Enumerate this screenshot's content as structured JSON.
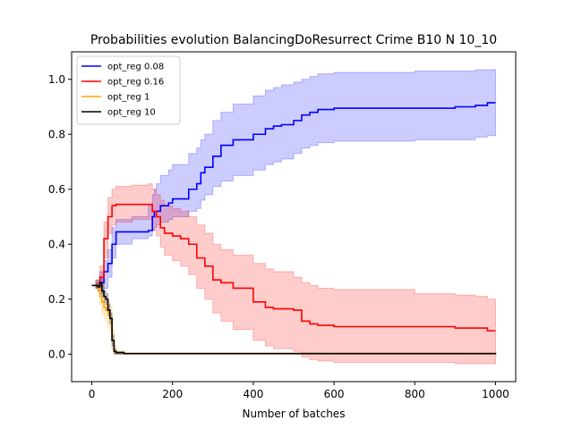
{
  "chart_data": {
    "type": "line",
    "title": "Probabilities evolution BalancingDoResurrect Crime B10 N 10_10",
    "xlabel": "Number of batches",
    "ylabel": "",
    "xlim": [
      -50,
      1050
    ],
    "ylim": [
      -0.1,
      1.1
    ],
    "xticks": [
      0,
      200,
      400,
      600,
      800,
      1000
    ],
    "yticks": [
      0.0,
      0.2,
      0.4,
      0.6,
      0.8,
      1.0
    ],
    "xtick_labels": [
      "0",
      "200",
      "400",
      "600",
      "800",
      "1000"
    ],
    "ytick_labels": [
      "0.0",
      "0.2",
      "0.4",
      "0.6",
      "0.8",
      "1.0"
    ],
    "grid": false,
    "legend_position": "top-left",
    "series": [
      {
        "name": "opt_reg 0.08",
        "color": "#0000ff",
        "band_color": "#0000ff",
        "x": [
          0,
          10,
          20,
          30,
          40,
          50,
          60,
          100,
          140,
          150,
          155,
          160,
          170,
          190,
          200,
          240,
          260,
          270,
          280,
          300,
          320,
          350,
          400,
          430,
          450,
          470,
          500,
          520,
          540,
          560,
          600,
          800,
          900,
          950,
          980,
          1000
        ],
        "values": [
          0.25,
          0.25,
          0.26,
          0.3,
          0.33,
          0.4,
          0.445,
          0.445,
          0.45,
          0.5,
          0.52,
          0.52,
          0.54,
          0.55,
          0.565,
          0.6,
          0.62,
          0.66,
          0.68,
          0.72,
          0.76,
          0.78,
          0.8,
          0.82,
          0.83,
          0.835,
          0.85,
          0.87,
          0.88,
          0.89,
          0.895,
          0.895,
          0.9,
          0.905,
          0.915,
          0.915
        ],
        "lower": [
          0.25,
          0.24,
          0.22,
          0.24,
          0.28,
          0.35,
          0.4,
          0.42,
          0.43,
          0.45,
          0.46,
          0.47,
          0.48,
          0.49,
          0.5,
          0.52,
          0.53,
          0.56,
          0.58,
          0.61,
          0.63,
          0.65,
          0.67,
          0.69,
          0.7,
          0.71,
          0.73,
          0.75,
          0.76,
          0.77,
          0.775,
          0.78,
          0.78,
          0.79,
          0.795,
          0.795
        ],
        "upper": [
          0.25,
          0.27,
          0.3,
          0.34,
          0.38,
          0.46,
          0.49,
          0.5,
          0.54,
          0.58,
          0.6,
          0.62,
          0.65,
          0.67,
          0.69,
          0.73,
          0.75,
          0.78,
          0.8,
          0.85,
          0.88,
          0.91,
          0.94,
          0.96,
          0.97,
          0.98,
          0.99,
          1.0,
          1.01,
          1.02,
          1.025,
          1.03,
          1.03,
          1.035,
          1.035,
          1.035
        ]
      },
      {
        "name": "opt_reg 0.16",
        "color": "#ff0000",
        "band_color": "#ff0000",
        "x": [
          0,
          10,
          20,
          30,
          40,
          50,
          60,
          100,
          140,
          150,
          160,
          170,
          180,
          200,
          220,
          240,
          260,
          280,
          300,
          320,
          350,
          400,
          430,
          450,
          500,
          520,
          540,
          560,
          600,
          800,
          900,
          950,
          980,
          1000
        ],
        "values": [
          0.25,
          0.25,
          0.28,
          0.42,
          0.5,
          0.54,
          0.545,
          0.545,
          0.545,
          0.52,
          0.5,
          0.46,
          0.44,
          0.43,
          0.42,
          0.4,
          0.35,
          0.32,
          0.27,
          0.26,
          0.24,
          0.19,
          0.17,
          0.165,
          0.16,
          0.12,
          0.11,
          0.105,
          0.1,
          0.1,
          0.095,
          0.095,
          0.085,
          0.085
        ],
        "lower": [
          0.25,
          0.24,
          0.25,
          0.35,
          0.44,
          0.47,
          0.48,
          0.49,
          0.49,
          0.45,
          0.43,
          0.39,
          0.36,
          0.34,
          0.32,
          0.29,
          0.24,
          0.2,
          0.15,
          0.12,
          0.09,
          0.05,
          0.03,
          0.02,
          0.01,
          -0.01,
          -0.02,
          -0.025,
          -0.03,
          -0.03,
          -0.035,
          -0.035,
          -0.035,
          -0.035
        ],
        "upper": [
          0.25,
          0.27,
          0.32,
          0.48,
          0.57,
          0.6,
          0.61,
          0.615,
          0.62,
          0.6,
          0.58,
          0.56,
          0.54,
          0.53,
          0.52,
          0.5,
          0.47,
          0.44,
          0.4,
          0.38,
          0.36,
          0.33,
          0.31,
          0.3,
          0.28,
          0.26,
          0.25,
          0.24,
          0.235,
          0.22,
          0.215,
          0.21,
          0.2,
          0.2
        ]
      },
      {
        "name": "opt_reg 1",
        "color": "#ffa500",
        "band_color": "#ffa500",
        "x": [
          0,
          10,
          15,
          20,
          25,
          30,
          35,
          40,
          45,
          50,
          55,
          60,
          80,
          1000
        ],
        "values": [
          0.25,
          0.25,
          0.24,
          0.21,
          0.19,
          0.17,
          0.16,
          0.15,
          0.13,
          0.05,
          0.01,
          0.005,
          0.002,
          0.0
        ],
        "lower": [
          0.25,
          0.24,
          0.22,
          0.18,
          0.15,
          0.13,
          0.12,
          0.1,
          0.08,
          0.02,
          0.0,
          0.0,
          0.0,
          0.0
        ],
        "upper": [
          0.25,
          0.26,
          0.26,
          0.24,
          0.22,
          0.21,
          0.2,
          0.19,
          0.17,
          0.09,
          0.03,
          0.01,
          0.004,
          0.0
        ]
      },
      {
        "name": "opt_reg 10",
        "color": "#000000",
        "band_color": "#000000",
        "x": [
          0,
          10,
          15,
          20,
          25,
          30,
          35,
          40,
          45,
          50,
          55,
          60,
          80,
          1000
        ],
        "values": [
          0.25,
          0.25,
          0.245,
          0.26,
          0.23,
          0.21,
          0.2,
          0.16,
          0.13,
          0.05,
          0.01,
          0.005,
          0.002,
          0.0
        ],
        "lower": [
          0.25,
          0.24,
          0.23,
          0.24,
          0.21,
          0.19,
          0.18,
          0.14,
          0.11,
          0.03,
          0.0,
          0.0,
          0.0,
          0.0
        ],
        "upper": [
          0.25,
          0.26,
          0.26,
          0.28,
          0.25,
          0.23,
          0.22,
          0.18,
          0.15,
          0.07,
          0.02,
          0.01,
          0.004,
          0.0
        ]
      }
    ]
  }
}
